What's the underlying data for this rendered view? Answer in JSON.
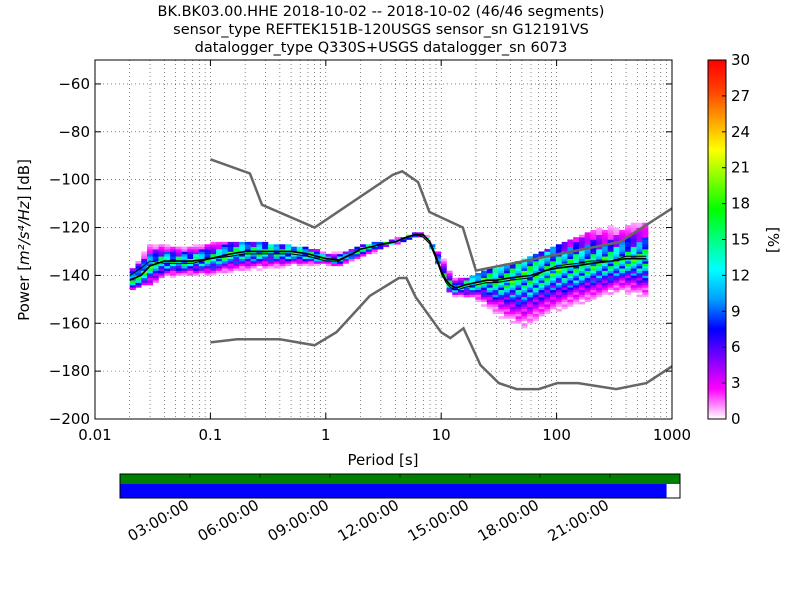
{
  "title": {
    "line1": "BK.BK03.00.HHE   2018-10-02 -- 2018-10-02  (46/46 segments)",
    "line2": "sensor_type REFTEK151B-120USGS sensor_sn G12191VS",
    "line3": "datalogger_type Q330S+USGS datalogger_sn 6073"
  },
  "chart_data": {
    "type": "heatmap",
    "xlabel": "Period [s]",
    "ylabel": "Power [m²/s⁴/Hz] [dB]",
    "xscale": "log",
    "xlim": [
      0.01,
      1000
    ],
    "ylim": [
      -200,
      -50
    ],
    "xticks": [
      0.01,
      0.1,
      1,
      10,
      100,
      1000
    ],
    "xtick_labels": [
      "0.01",
      "0.1",
      "1",
      "10",
      "100",
      "1000"
    ],
    "yticks": [
      -200,
      -180,
      -160,
      -140,
      -120,
      -100,
      -80,
      -60
    ],
    "ytick_labels": [
      "−200",
      "−180",
      "−160",
      "−140",
      "−120",
      "−100",
      "−80",
      "−60"
    ],
    "grid": true,
    "colorbar": {
      "label": "[%]",
      "range": [
        0,
        30
      ],
      "ticks": [
        0,
        3,
        6,
        9,
        12,
        15,
        18,
        21,
        24,
        27,
        30
      ],
      "tick_labels": [
        "0",
        "3",
        "6",
        "9",
        "12",
        "15",
        "18",
        "21",
        "24",
        "27",
        "30"
      ],
      "colors": [
        "#ffffff",
        "#ff00ff",
        "#8000ff",
        "#0000ff",
        "#00a0ff",
        "#00ffff",
        "#00ff80",
        "#00ff00",
        "#80ff00",
        "#ffff00",
        "#ffa000",
        "#ff4000",
        "#ff0000"
      ]
    },
    "noise_model_high": {
      "period": [
        0.1,
        0.22,
        0.28,
        0.8,
        3.8,
        4.6,
        6.3,
        7.9,
        15.4,
        20,
        354.8,
        1000
      ],
      "db": [
        -91.5,
        -97.4,
        -110.5,
        -120,
        -98,
        -96.5,
        -101,
        -113.5,
        -120,
        -138,
        -126,
        -112
      ]
    },
    "noise_model_low": {
      "period": [
        0.1,
        0.17,
        0.4,
        0.8,
        1.24,
        2.4,
        4.3,
        5,
        6,
        10,
        12,
        15.6,
        21.9,
        31.6,
        45,
        70,
        101,
        154,
        328,
        600,
        1000
      ],
      "db": [
        -168,
        -166.7,
        -166.7,
        -169.2,
        -163.7,
        -148.6,
        -141.1,
        -141.1,
        -149,
        -163.8,
        -166.2,
        -162.1,
        -177.5,
        -185,
        -187.5,
        -187.5,
        -185,
        -185,
        -187.5,
        -185,
        -178
      ]
    },
    "mean_curve": {
      "period": [
        0.02,
        0.025,
        0.03,
        0.04,
        0.05,
        0.07,
        0.1,
        0.15,
        0.2,
        0.3,
        0.5,
        0.7,
        1,
        1.3,
        1.7,
        2,
        2.5,
        3,
        4,
        5,
        6,
        7,
        8,
        9,
        10,
        11,
        12,
        13,
        14,
        16,
        20,
        25,
        30,
        40,
        60,
        80,
        100,
        150,
        200,
        300,
        400,
        600
      ],
      "db": [
        -142,
        -140,
        -136,
        -134,
        -134,
        -134,
        -133,
        -131,
        -130,
        -130,
        -130,
        -131,
        -133,
        -133.5,
        -131,
        -129,
        -128,
        -127,
        -126,
        -124,
        -123,
        -123,
        -126,
        -132,
        -138,
        -142,
        -144,
        -145,
        -145,
        -144,
        -143,
        -142,
        -142,
        -141,
        -140,
        -138,
        -137,
        -136,
        -135,
        -134,
        -133,
        -133
      ]
    },
    "mode_curve": {
      "period": [
        0.02,
        0.025,
        0.03,
        0.04,
        0.05,
        0.07,
        0.1,
        0.15,
        0.2,
        0.3,
        0.5,
        0.7,
        1,
        1.3,
        1.7,
        2,
        2.5,
        3,
        4,
        5,
        6,
        7,
        8,
        9,
        10,
        11,
        12,
        13,
        14,
        16,
        20,
        25,
        30,
        40,
        60,
        80,
        100,
        150,
        200,
        300,
        400,
        600
      ],
      "db": [
        -140,
        -137,
        -134,
        -135,
        -135,
        -135,
        -133,
        -132,
        -131,
        -131,
        -131,
        -132,
        -134,
        -134,
        -131,
        -129,
        -128,
        -127,
        -126,
        -124,
        -123,
        -124,
        -127,
        -133,
        -139,
        -143,
        -145,
        -146,
        -146,
        -145,
        -144,
        -143,
        -143,
        -142,
        -141,
        -138,
        -136,
        -135,
        -134,
        -134,
        -132,
        -132
      ]
    },
    "spread": {
      "period": [
        0.02,
        0.03,
        0.05,
        0.1,
        0.2,
        0.5,
        1,
        2,
        3,
        5,
        6,
        7,
        8,
        10,
        12,
        14,
        20,
        30,
        50,
        100,
        200,
        300,
        400,
        600
      ],
      "upper": [
        -136,
        -124,
        -126,
        -126,
        -126,
        -128,
        -130,
        -128,
        -126,
        -124,
        -122,
        -121,
        -124,
        -130,
        -137,
        -142,
        -140,
        -137,
        -134,
        -128,
        -122,
        -117,
        -115,
        -112
      ],
      "lower": [
        -146,
        -143,
        -142,
        -142,
        -140,
        -138,
        -136,
        -134,
        -130,
        -128,
        -125,
        -124,
        -128,
        -138,
        -147,
        -150,
        -152,
        -160,
        -168,
        -160,
        -155,
        -152,
        -150,
        -150
      ]
    },
    "segment_timeline": {
      "ticks": [
        "03:00:00",
        "06:00:00",
        "09:00:00",
        "12:00:00",
        "15:00:00",
        "18:00:00",
        "21:00:00"
      ],
      "tick_hours": [
        3,
        6,
        9,
        12,
        15,
        18,
        21
      ],
      "data_coverage_fraction": 1.0,
      "psd_coverage_fraction": 0.976,
      "coverage_color": "#008000",
      "psd_color": "#0000ff"
    }
  }
}
